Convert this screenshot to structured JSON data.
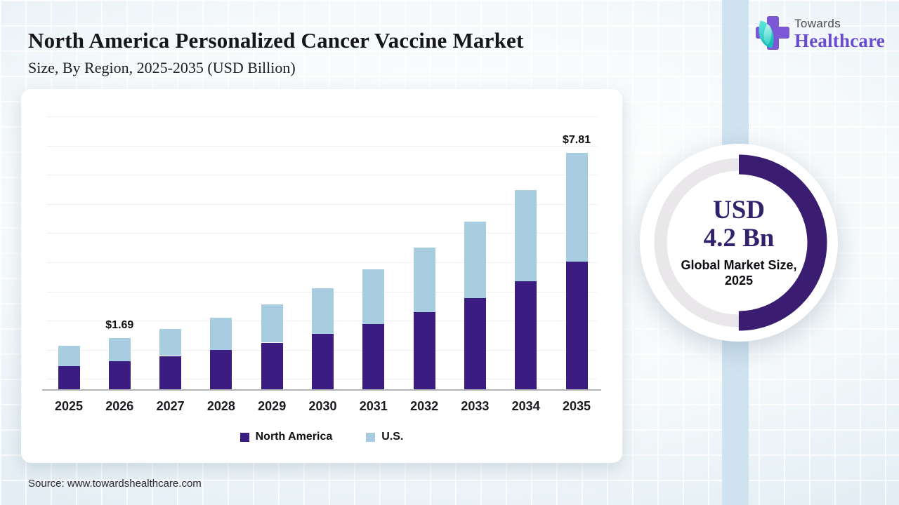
{
  "header": {
    "title": "North America Personalized Cancer Vaccine Market",
    "subtitle": "Size, By Region, 2025-2035 (USD Billion)"
  },
  "logo": {
    "top": "Towards",
    "bottom": "Healthcare"
  },
  "chart_data": {
    "type": "bar",
    "stacked": true,
    "title": "North America Personalized Cancer Vaccine Market Size, By Region, 2025-2035 (USD Billion)",
    "categories": [
      "2025",
      "2026",
      "2027",
      "2028",
      "2029",
      "2030",
      "2031",
      "2032",
      "2033",
      "2034",
      "2035"
    ],
    "series": [
      {
        "name": "North America",
        "color": "#3b1d82",
        "values": [
          0.77,
          0.92,
          1.1,
          1.3,
          1.54,
          1.82,
          2.16,
          2.55,
          3.0,
          3.56,
          4.22
        ]
      },
      {
        "name": "U.S.",
        "color": "#a8cce0",
        "values": [
          0.66,
          0.77,
          0.9,
          1.07,
          1.27,
          1.51,
          1.79,
          2.13,
          2.54,
          3.01,
          3.59
        ]
      }
    ],
    "totals": [
      1.43,
      1.69,
      2.0,
      2.37,
      2.81,
      3.33,
      3.95,
      4.68,
      5.54,
      6.57,
      7.81
    ],
    "data_labels": [
      {
        "category": "2026",
        "text": "$1.69"
      },
      {
        "category": "2035",
        "text": "$7.81"
      }
    ],
    "xlabel": "",
    "ylabel": "",
    "ylim": [
      0,
      8.5
    ],
    "grid": "horizontal-faint",
    "legend_position": "bottom"
  },
  "donut": {
    "line1": "USD",
    "line2": "4.2 Bn",
    "caption1": "Global Market Size,",
    "caption2": "2025",
    "fraction": 0.5,
    "arc_color": "#3a1d70",
    "track_color": "#eae7eb"
  },
  "footer": {
    "source": "Source: www.towardshealthcare.com"
  },
  "colors": {
    "brand_purple": "#6a4cd1",
    "bar_purple": "#3b1d82",
    "bar_blue": "#a8cce0",
    "stripe_blue": "#cfe3f0",
    "card_bg": "#ffffff"
  }
}
